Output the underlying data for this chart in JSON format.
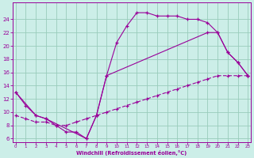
{
  "bg_color": "#cceee8",
  "grid_color": "#99ccbb",
  "line_color": "#990099",
  "xlabel": "Windchill (Refroidissement éolien,°C)",
  "xlim": [
    -0.3,
    23.3
  ],
  "ylim": [
    5.5,
    26.5
  ],
  "yticks": [
    6,
    8,
    10,
    12,
    14,
    16,
    18,
    20,
    22,
    24
  ],
  "xticks": [
    0,
    1,
    2,
    3,
    4,
    5,
    6,
    7,
    8,
    9,
    10,
    11,
    12,
    13,
    14,
    15,
    16,
    17,
    18,
    19,
    20,
    21,
    22,
    23
  ],
  "curve1_x": [
    0,
    1,
    2,
    3,
    4,
    5,
    6,
    7,
    8,
    9,
    10,
    11,
    12,
    13,
    14,
    15,
    16,
    17,
    18,
    19,
    20,
    21,
    22,
    23
  ],
  "curve1_y": [
    13,
    11,
    9.5,
    9.0,
    8.0,
    7.0,
    7.0,
    6.0,
    9.5,
    15.5,
    20.5,
    23.0,
    25.0,
    25.0,
    24.5,
    24.5,
    24.5,
    24.0,
    24.0,
    23.5,
    22.0,
    19.0,
    17.5,
    15.5
  ],
  "curve2_x": [
    0,
    2,
    3,
    7,
    8,
    9,
    19,
    20,
    21,
    22,
    23
  ],
  "curve2_y": [
    13,
    9.5,
    9.0,
    6.0,
    9.5,
    15.5,
    22.0,
    22.0,
    19.0,
    17.5,
    15.5
  ],
  "curve3_x": [
    0,
    1,
    2,
    3,
    4,
    5,
    6,
    7,
    8,
    9,
    10,
    11,
    12,
    13,
    14,
    15,
    16,
    17,
    18,
    19,
    20,
    21,
    22,
    23
  ],
  "curve3_y": [
    9.5,
    9.0,
    8.5,
    8.5,
    8.0,
    8.0,
    8.5,
    9.0,
    9.5,
    10.0,
    10.5,
    11.0,
    11.5,
    12.0,
    12.5,
    13.0,
    13.5,
    14.0,
    14.5,
    15.0,
    15.5,
    15.5,
    15.5,
    15.5
  ]
}
